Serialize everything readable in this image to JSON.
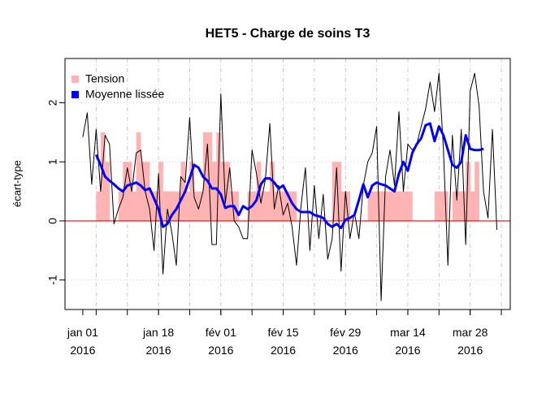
{
  "chart_data": {
    "type": "line",
    "title": "HET5 - Charge de soins T3",
    "ylabel": "écart-type",
    "x": [
      "2016-01-01",
      "2016-01-02",
      "2016-01-03",
      "2016-01-04",
      "2016-01-05",
      "2016-01-06",
      "2016-01-07",
      "2016-01-08",
      "2016-01-09",
      "2016-01-10",
      "2016-01-11",
      "2016-01-12",
      "2016-01-13",
      "2016-01-14",
      "2016-01-15",
      "2016-01-16",
      "2016-01-17",
      "2016-01-18",
      "2016-01-19",
      "2016-01-20",
      "2016-01-21",
      "2016-01-22",
      "2016-01-23",
      "2016-01-24",
      "2016-01-25",
      "2016-01-26",
      "2016-01-27",
      "2016-01-28",
      "2016-01-29",
      "2016-01-30",
      "2016-01-31",
      "2016-02-01",
      "2016-02-02",
      "2016-02-03",
      "2016-02-04",
      "2016-02-05",
      "2016-02-06",
      "2016-02-07",
      "2016-02-08",
      "2016-02-09",
      "2016-02-10",
      "2016-02-11",
      "2016-02-12",
      "2016-02-13",
      "2016-02-14",
      "2016-02-15",
      "2016-02-16",
      "2016-02-17",
      "2016-02-18",
      "2016-02-19",
      "2016-02-20",
      "2016-02-21",
      "2016-02-22",
      "2016-02-23",
      "2016-02-24",
      "2016-02-25",
      "2016-02-26",
      "2016-02-27",
      "2016-02-28",
      "2016-02-29",
      "2016-03-01",
      "2016-03-02",
      "2016-03-03",
      "2016-03-04",
      "2016-03-05",
      "2016-03-06",
      "2016-03-07",
      "2016-03-08",
      "2016-03-09",
      "2016-03-10",
      "2016-03-11",
      "2016-03-12",
      "2016-03-13",
      "2016-03-14",
      "2016-03-15",
      "2016-03-16",
      "2016-03-17",
      "2016-03-18",
      "2016-03-19",
      "2016-03-20",
      "2016-03-21",
      "2016-03-22",
      "2016-03-23",
      "2016-03-24",
      "2016-03-25",
      "2016-03-26",
      "2016-03-27",
      "2016-03-28",
      "2016-03-29",
      "2016-03-30",
      "2016-03-31",
      "2016-04-01",
      "2016-04-02",
      "2016-04-03"
    ],
    "series": [
      {
        "style": "line",
        "color": "#000000",
        "width": 1,
        "values": [
          1.42,
          1.83,
          0.62,
          1.55,
          0.5,
          1.45,
          1.3,
          -0.05,
          0.2,
          0.4,
          0.9,
          0.5,
          1.15,
          1.2,
          0.5,
          0.2,
          -0.5,
          0.8,
          -0.9,
          0.2,
          -0.2,
          -0.75,
          0.75,
          0.65,
          1.75,
          0.4,
          0.2,
          0.5,
          1.3,
          -0.4,
          -0.4,
          2.15,
          0.3,
          0.9,
          0,
          -0.1,
          -0.3,
          -0.3,
          1.2,
          0.8,
          0.3,
          0.7,
          1.65,
          0.2,
          0.6,
          0.1,
          0.3,
          -0.1,
          -0.75,
          0.25,
          0.9,
          -0.5,
          0.6,
          -0.3,
          0.45,
          -0.65,
          -0.3,
          0.9,
          -0.85,
          0.5,
          -0.3,
          0.15,
          -0.3,
          0.6,
          1,
          1.15,
          1.6,
          -1.35,
          0.75,
          1.2,
          0.6,
          1.85,
          0.5,
          1.3,
          1.2,
          1.3,
          1.6,
          1.9,
          2.35,
          1.85,
          2.5,
          1.2,
          -0.75,
          1.45,
          0.35,
          1.55,
          -0.4,
          2.2,
          2.5,
          1.95,
          0.5,
          0.05,
          1.55,
          -0.15
        ]
      },
      {
        "name": "Tension",
        "style": "bar",
        "color": "#ffb3b3",
        "values": [
          0,
          0,
          0,
          0.5,
          1.5,
          1,
          0,
          0,
          0.5,
          1,
          1,
          0.5,
          1.5,
          1,
          1,
          0.5,
          0.5,
          1,
          0.5,
          0.5,
          0.5,
          0.5,
          1,
          0.5,
          1,
          0.5,
          0.5,
          1.5,
          1.5,
          1,
          1.5,
          1,
          1,
          0.5,
          0.5,
          0,
          0,
          0.5,
          0.5,
          1,
          0.5,
          0.5,
          1,
          0.5,
          0.5,
          0.5,
          0.5,
          0.5,
          0,
          0,
          0,
          0,
          0,
          0,
          0,
          0,
          1,
          1,
          0.5,
          0.5,
          0,
          0,
          0,
          0,
          0.5,
          0.5,
          0.5,
          0.5,
          0.5,
          0.5,
          0.5,
          0.5,
          0.5,
          0.5,
          0,
          0,
          0,
          0,
          0,
          0.5,
          0.5,
          0.5,
          0,
          0.5,
          0.5,
          0.5,
          1,
          0.5,
          1,
          0,
          0,
          0,
          0,
          0
        ]
      },
      {
        "name": "Moyenne lissée",
        "style": "line",
        "color": "#0000ff",
        "width": 3,
        "values": [
          null,
          null,
          null,
          1.12,
          0.95,
          0.75,
          0.68,
          0.62,
          0.55,
          0.5,
          0.6,
          0.62,
          0.65,
          0.6,
          0.52,
          0.55,
          0.38,
          0.2,
          -0.1,
          -0.05,
          0.1,
          0.2,
          0.35,
          0.5,
          0.72,
          0.95,
          0.9,
          0.75,
          0.68,
          0.55,
          0.55,
          0.45,
          0.22,
          0.25,
          0.25,
          0.1,
          0.25,
          0.2,
          0.25,
          0.35,
          0.62,
          0.72,
          0.72,
          0.65,
          0.55,
          0.6,
          0.45,
          0.3,
          0.2,
          0.15,
          0.15,
          0.15,
          0.1,
          0.08,
          0.05,
          -0.05,
          -0.1,
          -0.05,
          -0.12,
          0.02,
          0.05,
          0.1,
          0.35,
          0.62,
          0.4,
          0.6,
          0.65,
          0.62,
          0.6,
          0.55,
          0.5,
          0.8,
          1,
          0.85,
          1.15,
          1.3,
          1.4,
          1.62,
          1.65,
          1.35,
          1.6,
          1.45,
          1.2,
          0.95,
          0.9,
          1,
          1.45,
          1.22,
          1.2,
          1.2,
          1.22,
          null,
          null,
          null
        ]
      }
    ],
    "reference_line": {
      "value": 0,
      "color": "#ff0000"
    },
    "xlim": [
      "2015-12-28",
      "2016-04-06"
    ],
    "ylim": [
      -1.5,
      2.75
    ],
    "yticks": [
      -1,
      0,
      1,
      2
    ],
    "xticks": [
      {
        "value": "2016-01-01",
        "label": "jan 01\n2016"
      },
      {
        "value": "2016-01-18",
        "label": "jan 18\n2016"
      },
      {
        "value": "2016-02-01",
        "label": "fév 01\n2016"
      },
      {
        "value": "2016-02-15",
        "label": "fév 15\n2016"
      },
      {
        "value": "2016-02-29",
        "label": "fév 29\n2016"
      },
      {
        "value": "2016-03-14",
        "label": "mar 14\n2016"
      },
      {
        "value": "2016-03-28",
        "label": "mar 28\n2016"
      }
    ],
    "xgrid": [
      "2016-01-04",
      "2016-01-11",
      "2016-01-18",
      "2016-01-25",
      "2016-02-01",
      "2016-02-08",
      "2016-02-15",
      "2016-02-22",
      "2016-02-29",
      "2016-03-07",
      "2016-03-14",
      "2016-03-21",
      "2016-03-28",
      "2016-04-04"
    ],
    "grid": true,
    "legend": "top-left"
  }
}
